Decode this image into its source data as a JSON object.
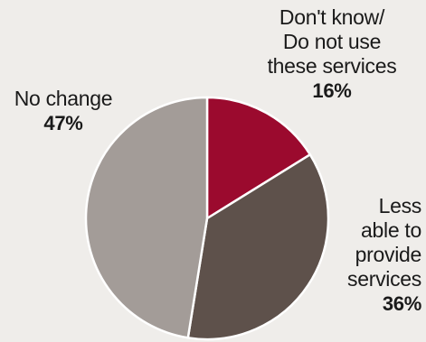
{
  "chart_data": {
    "type": "pie",
    "slices": [
      {
        "label_lines": [
          "Don't know/",
          "Do not use",
          "these services"
        ],
        "value": 16,
        "value_label": "16%",
        "color": "#9b0a2e"
      },
      {
        "label_lines": [
          "Less",
          "able to",
          "provide",
          "services"
        ],
        "value": 36,
        "value_label": "36%",
        "color": "#5e514b"
      },
      {
        "label_lines": [
          "No change"
        ],
        "value": 47,
        "value_label": "47%",
        "color": "#a39c98"
      }
    ],
    "title": "",
    "legend": "none",
    "start_angle_deg": 0,
    "direction": "clockwise"
  }
}
